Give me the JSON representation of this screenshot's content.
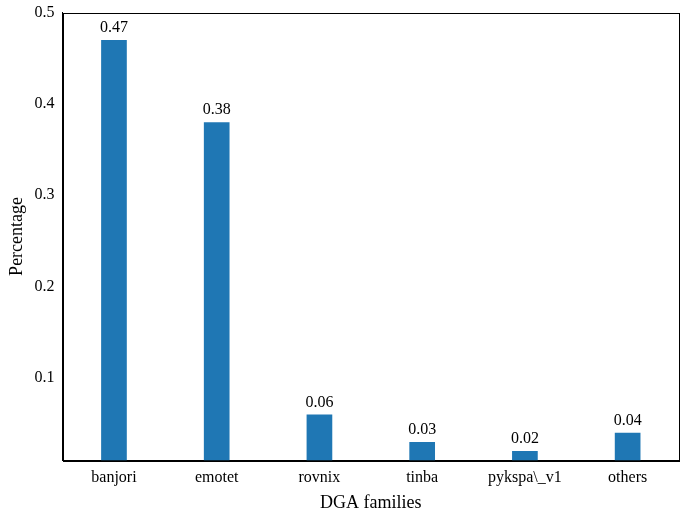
{
  "chart_data": {
    "type": "bar",
    "x_label": "DGA families",
    "y_label": "Percentage",
    "categories": [
      "banjori",
      "emotet",
      "rovnix",
      "tinba",
      "pykspa\\_v1",
      "others"
    ],
    "values": [
      0.47,
      0.38,
      0.06,
      0.03,
      0.02,
      0.04
    ],
    "color": "#1f77b4",
    "ylim": [
      0.01,
      0.5
    ],
    "yticks": [
      0.1,
      0.2,
      0.3,
      0.4,
      0.5
    ],
    "grid": false,
    "data_labels": true
  }
}
